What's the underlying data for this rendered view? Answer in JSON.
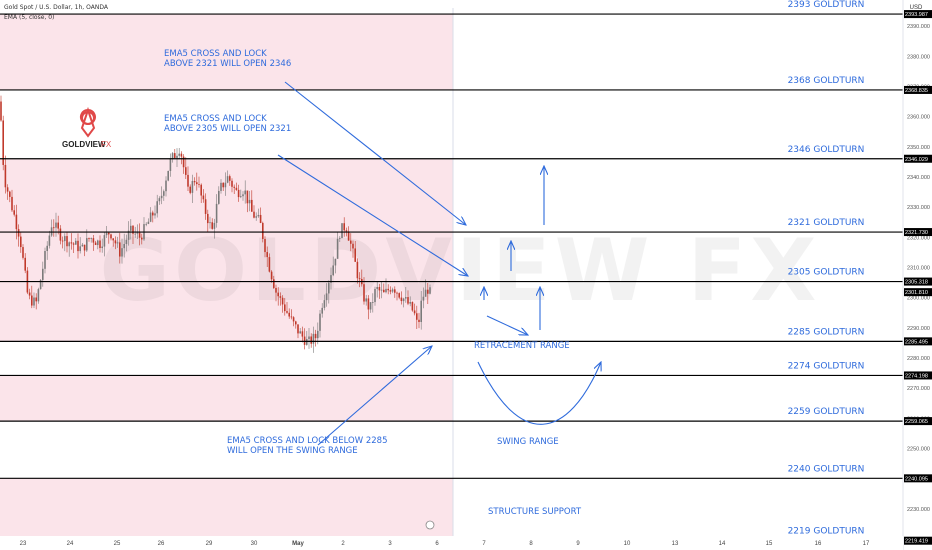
{
  "header": {
    "symbol_line": "Gold Spot / U.S. Dollar, 1h, OANDA",
    "indicator_line": "EMA (5, close, 0)"
  },
  "watermark": {
    "text": "GOLDVIEW FX"
  },
  "logo": {
    "brand": "GOLDVIEW",
    "brand_suffix": "FX"
  },
  "axis": {
    "currency_label": "USD"
  },
  "colors": {
    "zone_fill": "#fbe4ea",
    "candle_up": "#7a7a7a",
    "candle_down": "#c0392b",
    "annotation_blue": "#2f6bdc",
    "level_line": "#000000",
    "logo_red": "#e04848"
  },
  "chart_data": {
    "type": "candlestick",
    "title": "Gold Spot / U.S. Dollar, 1h, OANDA",
    "ylim": [
      2217,
      2396
    ],
    "y_ticks": [
      "2220.000",
      "2230.000",
      "2240.000",
      "2250.000",
      "2260.000",
      "2270.000",
      "2280.000",
      "2290.000",
      "2300.000",
      "2310.000",
      "2320.000",
      "2330.000",
      "2340.000",
      "2350.000",
      "2360.000",
      "2370.000",
      "2380.000",
      "2390.000"
    ],
    "x_ticks": [
      "23",
      "24",
      "25",
      "26",
      "29",
      "30",
      "May",
      "2",
      "3",
      "6",
      "7",
      "8",
      "9",
      "10",
      "13",
      "14",
      "15",
      "16",
      "17"
    ],
    "price_levels": [
      {
        "value": 2393.987,
        "label": "2393.987",
        "goldturn": "2393 GOLDTURN"
      },
      {
        "value": 2368.835,
        "label": "2368.835",
        "goldturn": "2368 GOLDTURN"
      },
      {
        "value": 2346.029,
        "label": "2346.029",
        "goldturn": "2346 GOLDTURN"
      },
      {
        "value": 2321.73,
        "label": "2321.730",
        "goldturn": "2321 GOLDTURN"
      },
      {
        "value": 2305.318,
        "label": "2305.318",
        "goldturn": "2305 GOLDTURN"
      },
      {
        "value": 2285.495,
        "label": "2285.495",
        "goldturn": "2285 GOLDTURN"
      },
      {
        "value": 2274.198,
        "label": "2274.198",
        "goldturn": "2274 GOLDTURN"
      },
      {
        "value": 2259.065,
        "label": "2259.065",
        "goldturn": "2259 GOLDTURN"
      },
      {
        "value": 2240.095,
        "label": "2240.095",
        "goldturn": "2240 GOLDTURN"
      },
      {
        "value": 2219.419,
        "label": "2219.419",
        "goldturn": "2219 GOLDTURN"
      }
    ],
    "current_price": {
      "value": 2301.81,
      "label": "2301.810"
    },
    "zones": [
      {
        "top": 2393.987,
        "bottom": 2368.835
      },
      {
        "top": 2346.029,
        "bottom": 2285.495
      },
      {
        "top": 2274.198,
        "bottom": 2259.065
      },
      {
        "top": 2240.095,
        "bottom": 2219.419
      }
    ],
    "price_path": [
      [
        0,
        2365
      ],
      [
        4,
        2340
      ],
      [
        12,
        2330
      ],
      [
        20,
        2320
      ],
      [
        28,
        2300
      ],
      [
        36,
        2298
      ],
      [
        44,
        2312
      ],
      [
        52,
        2325
      ],
      [
        62,
        2320
      ],
      [
        72,
        2318
      ],
      [
        82,
        2316
      ],
      [
        90,
        2320
      ],
      [
        100,
        2318
      ],
      [
        110,
        2322
      ],
      [
        120,
        2315
      ],
      [
        130,
        2322
      ],
      [
        140,
        2320
      ],
      [
        150,
        2326
      ],
      [
        160,
        2332
      ],
      [
        170,
        2345
      ],
      [
        180,
        2350
      ],
      [
        188,
        2335
      ],
      [
        196,
        2340
      ],
      [
        204,
        2330
      ],
      [
        212,
        2322
      ],
      [
        220,
        2336
      ],
      [
        228,
        2340
      ],
      [
        236,
        2335
      ],
      [
        244,
        2336
      ],
      [
        252,
        2328
      ],
      [
        260,
        2325
      ],
      [
        268,
        2312
      ],
      [
        276,
        2302
      ],
      [
        284,
        2297
      ],
      [
        292,
        2292
      ],
      [
        300,
        2288
      ],
      [
        308,
        2285
      ],
      [
        316,
        2287
      ],
      [
        322,
        2298
      ],
      [
        328,
        2305
      ],
      [
        334,
        2312
      ],
      [
        340,
        2322
      ],
      [
        346,
        2324
      ],
      [
        352,
        2316
      ],
      [
        358,
        2307
      ],
      [
        364,
        2300
      ],
      [
        370,
        2296
      ],
      [
        376,
        2303
      ],
      [
        384,
        2301
      ],
      [
        392,
        2304
      ],
      [
        400,
        2301
      ],
      [
        408,
        2298
      ],
      [
        414,
        2295
      ],
      [
        418,
        2290
      ],
      [
        422,
        2300
      ],
      [
        428,
        2303
      ],
      [
        432,
        2300
      ]
    ],
    "annotations": [
      {
        "lines": [
          "EMA5 CROSS AND LOCK",
          "ABOVE 2321 WILL OPEN 2346"
        ],
        "x_data": "May"
      },
      {
        "lines": [
          "EMA5 CROSS AND LOCK",
          "ABOVE 2305 WILL OPEN 2321"
        ],
        "x_data": "May"
      },
      {
        "lines": [
          "EMA5 CROSS AND LOCK BELOW 2285",
          "WILL OPEN THE SWING RANGE"
        ],
        "x_data": "30"
      },
      {
        "lines": [
          "RETRACEMENT RANGE"
        ]
      },
      {
        "lines": [
          "SWING RANGE"
        ]
      },
      {
        "lines": [
          "STRUCTURE SUPPORT"
        ]
      }
    ]
  }
}
